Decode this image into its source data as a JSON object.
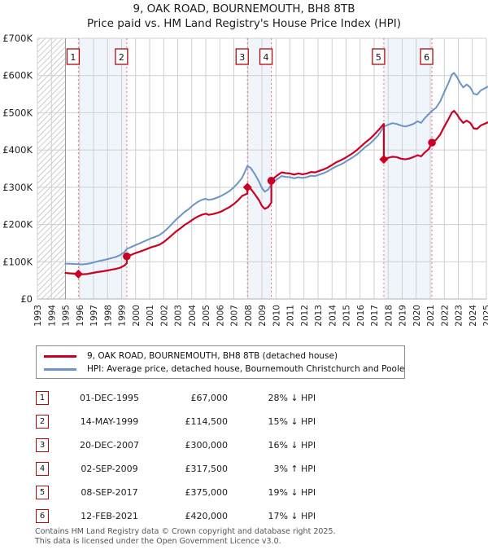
{
  "title": {
    "line1": "9, OAK ROAD, BOURNEMOUTH, BH8 8TB",
    "line2": "Price paid vs. HM Land Registry's House Price Index (HPI)"
  },
  "legend": {
    "entries": [
      {
        "label": "9, OAK ROAD, BOURNEMOUTH, BH8 8TB (detached house)",
        "color": "#cc0022"
      },
      {
        "label": "HPI: Average price, detached house, Bournemouth Christchurch and Poole",
        "color": "#6b95c9"
      }
    ]
  },
  "sales": [
    {
      "num": "1",
      "date": "01-DEC-1995",
      "price": "£67,000",
      "pct": "28%",
      "arrow": "↓",
      "hpi": "HPI"
    },
    {
      "num": "2",
      "date": "14-MAY-1999",
      "price": "£114,500",
      "pct": "15%",
      "arrow": "↓",
      "hpi": "HPI"
    },
    {
      "num": "3",
      "date": "20-DEC-2007",
      "price": "£300,000",
      "pct": "16%",
      "arrow": "↓",
      "hpi": "HPI"
    },
    {
      "num": "4",
      "date": "02-SEP-2009",
      "price": "£317,500",
      "pct": "3%",
      "arrow": "↑",
      "hpi": "HPI"
    },
    {
      "num": "5",
      "date": "08-SEP-2017",
      "price": "£375,000",
      "pct": "19%",
      "arrow": "↓",
      "hpi": "HPI"
    },
    {
      "num": "6",
      "date": "12-FEB-2021",
      "price": "£420,000",
      "pct": "17%",
      "arrow": "↓",
      "hpi": "HPI"
    }
  ],
  "footer": {
    "line1": "Contains HM Land Registry data © Crown copyright and database right 2025.",
    "line2": "This data is licensed under the Open Government Licence v3.0."
  },
  "chart_data": {
    "type": "line",
    "title": "Price paid vs. HM Land Registry's House Price Index (HPI)",
    "xlabel": "",
    "ylabel": "",
    "x_axis": {
      "labels": [
        "1993",
        "1994",
        "1995",
        "1996",
        "1997",
        "1998",
        "1999",
        "2000",
        "2001",
        "2002",
        "2003",
        "2004",
        "2005",
        "2006",
        "2007",
        "2008",
        "2009",
        "2010",
        "2011",
        "2012",
        "2013",
        "2014",
        "2015",
        "2016",
        "2017",
        "2018",
        "2019",
        "2020",
        "2021",
        "2022",
        "2023",
        "2024",
        "2025"
      ],
      "range": [
        1993,
        2025.3
      ]
    },
    "y_axis": {
      "labels": [
        "£0",
        "£100K",
        "£200K",
        "£300K",
        "£400K",
        "£500K",
        "£600K",
        "£700K"
      ],
      "range_gbp": [
        0,
        700000
      ],
      "gridline_step_gbp": 100000
    },
    "grid": true,
    "legend_position": "below",
    "hatched_no_data_region": {
      "from": 1993,
      "to": 1995
    },
    "ownership_bands": [
      {
        "from": 1995.92,
        "to": 1999.37
      },
      {
        "from": 2007.97,
        "to": 2009.67
      },
      {
        "from": 2017.69,
        "to": 2021.12
      }
    ],
    "markers": [
      {
        "num": "1",
        "year": 1995.92,
        "value_k": 67,
        "shape": "diamond"
      },
      {
        "num": "2",
        "year": 1999.37,
        "value_k": 114.5,
        "shape": "circle"
      },
      {
        "num": "3",
        "year": 2007.97,
        "value_k": 300,
        "shape": "diamond"
      },
      {
        "num": "4",
        "year": 2009.67,
        "value_k": 317.5,
        "shape": "circle"
      },
      {
        "num": "5",
        "year": 2017.69,
        "value_k": 375,
        "shape": "diamond"
      },
      {
        "num": "6",
        "year": 2021.12,
        "value_k": 420,
        "shape": "circle"
      }
    ],
    "series": [
      {
        "name": "9, OAK ROAD, BOURNEMOUTH, BH8 8TB (detached house)",
        "color": "#cc0022",
        "unit": "GBP_thousands",
        "points": [
          [
            1995,
            70
          ],
          [
            1995.3,
            69
          ],
          [
            1995.6,
            68
          ],
          [
            1995.92,
            67
          ],
          [
            1996.2,
            66.5
          ],
          [
            1996.5,
            67
          ],
          [
            1996.8,
            69
          ],
          [
            1997.1,
            71
          ],
          [
            1997.4,
            73
          ],
          [
            1997.7,
            74.5
          ],
          [
            1998,
            76.5
          ],
          [
            1998.3,
            79
          ],
          [
            1998.6,
            81
          ],
          [
            1998.9,
            84
          ],
          [
            1999.2,
            90
          ],
          [
            1999.37,
            96
          ],
          [
            1999.37,
            114.5
          ],
          [
            1999.6,
            117
          ],
          [
            1999.9,
            122
          ],
          [
            2000.2,
            126
          ],
          [
            2000.5,
            130
          ],
          [
            2000.8,
            134
          ],
          [
            2001.1,
            139
          ],
          [
            2001.4,
            142
          ],
          [
            2001.7,
            146
          ],
          [
            2002,
            153
          ],
          [
            2002.3,
            162
          ],
          [
            2002.6,
            172
          ],
          [
            2002.9,
            182
          ],
          [
            2003.2,
            190
          ],
          [
            2003.5,
            199
          ],
          [
            2003.8,
            206
          ],
          [
            2004.1,
            214
          ],
          [
            2004.4,
            221
          ],
          [
            2004.7,
            226
          ],
          [
            2005,
            229
          ],
          [
            2005.2,
            226
          ],
          [
            2005.5,
            228
          ],
          [
            2005.8,
            231
          ],
          [
            2006.1,
            235
          ],
          [
            2006.4,
            241
          ],
          [
            2006.7,
            247
          ],
          [
            2007,
            255
          ],
          [
            2007.3,
            265
          ],
          [
            2007.6,
            277
          ],
          [
            2007.97,
            283
          ],
          [
            2007.97,
            300
          ],
          [
            2008.2,
            296
          ],
          [
            2008.5,
            281
          ],
          [
            2008.8,
            265
          ],
          [
            2009,
            250
          ],
          [
            2009.2,
            242
          ],
          [
            2009.45,
            247
          ],
          [
            2009.67,
            259
          ],
          [
            2009.67,
            317.5
          ],
          [
            2009.9,
            326
          ],
          [
            2010.1,
            332
          ],
          [
            2010.4,
            340
          ],
          [
            2010.7,
            338
          ],
          [
            2011,
            337
          ],
          [
            2011.3,
            334
          ],
          [
            2011.6,
            337
          ],
          [
            2011.9,
            335
          ],
          [
            2012.2,
            337
          ],
          [
            2012.5,
            341
          ],
          [
            2012.8,
            340
          ],
          [
            2013.1,
            344
          ],
          [
            2013.4,
            348
          ],
          [
            2013.7,
            353
          ],
          [
            2014,
            360
          ],
          [
            2014.3,
            367
          ],
          [
            2014.6,
            372
          ],
          [
            2014.9,
            378
          ],
          [
            2015.2,
            385
          ],
          [
            2015.5,
            392
          ],
          [
            2015.8,
            401
          ],
          [
            2016.1,
            411
          ],
          [
            2016.4,
            421
          ],
          [
            2016.7,
            430
          ],
          [
            2017,
            441
          ],
          [
            2017.3,
            453
          ],
          [
            2017.69,
            470
          ],
          [
            2017.69,
            375
          ],
          [
            2018,
            379
          ],
          [
            2018.3,
            382
          ],
          [
            2018.6,
            381
          ],
          [
            2018.9,
            377
          ],
          [
            2019.2,
            375
          ],
          [
            2019.5,
            377
          ],
          [
            2019.8,
            381
          ],
          [
            2020.1,
            386
          ],
          [
            2020.35,
            383
          ],
          [
            2020.6,
            393
          ],
          [
            2020.9,
            403
          ],
          [
            2021.12,
            420
          ],
          [
            2021.4,
            427
          ],
          [
            2021.7,
            441
          ],
          [
            2022,
            463
          ],
          [
            2022.3,
            483
          ],
          [
            2022.55,
            501
          ],
          [
            2022.7,
            505
          ],
          [
            2022.9,
            496
          ],
          [
            2023.1,
            484
          ],
          [
            2023.35,
            473
          ],
          [
            2023.6,
            479
          ],
          [
            2023.85,
            473
          ],
          [
            2024.1,
            458
          ],
          [
            2024.35,
            457
          ],
          [
            2024.6,
            466
          ],
          [
            2024.85,
            470
          ],
          [
            2025.1,
            474
          ]
        ]
      },
      {
        "name": "HPI: Average price, detached house, Bournemouth Christchurch and Poole",
        "color": "#6b95c9",
        "unit": "GBP_thousands",
        "points": [
          [
            1995,
            95
          ],
          [
            1995.3,
            94.5
          ],
          [
            1995.6,
            94
          ],
          [
            1995.92,
            93.5
          ],
          [
            1996.2,
            93
          ],
          [
            1996.5,
            94
          ],
          [
            1996.8,
            96
          ],
          [
            1997.1,
            99
          ],
          [
            1997.4,
            102
          ],
          [
            1997.7,
            104.5
          ],
          [
            1998,
            107
          ],
          [
            1998.3,
            110
          ],
          [
            1998.6,
            113
          ],
          [
            1998.9,
            118
          ],
          [
            1999.2,
            126
          ],
          [
            1999.37,
            134.5
          ],
          [
            1999.6,
            138
          ],
          [
            1999.9,
            143
          ],
          [
            2000.2,
            148
          ],
          [
            2000.5,
            153
          ],
          [
            2000.8,
            158
          ],
          [
            2001.1,
            163
          ],
          [
            2001.4,
            167
          ],
          [
            2001.7,
            172
          ],
          [
            2002,
            180
          ],
          [
            2002.3,
            190
          ],
          [
            2002.6,
            202
          ],
          [
            2002.9,
            214
          ],
          [
            2003.2,
            224
          ],
          [
            2003.5,
            234
          ],
          [
            2003.8,
            242
          ],
          [
            2004.1,
            252
          ],
          [
            2004.4,
            260
          ],
          [
            2004.7,
            266
          ],
          [
            2005,
            269
          ],
          [
            2005.2,
            266
          ],
          [
            2005.5,
            268
          ],
          [
            2005.8,
            272
          ],
          [
            2006.1,
            277
          ],
          [
            2006.4,
            283
          ],
          [
            2006.7,
            290
          ],
          [
            2007,
            300
          ],
          [
            2007.3,
            312
          ],
          [
            2007.6,
            326
          ],
          [
            2007.97,
            357
          ],
          [
            2008.2,
            352
          ],
          [
            2008.5,
            335
          ],
          [
            2008.8,
            315
          ],
          [
            2009,
            298
          ],
          [
            2009.2,
            288
          ],
          [
            2009.45,
            294
          ],
          [
            2009.67,
            308
          ],
          [
            2009.9,
            316
          ],
          [
            2010.1,
            322
          ],
          [
            2010.4,
            330
          ],
          [
            2010.7,
            328
          ],
          [
            2011,
            327
          ],
          [
            2011.3,
            324
          ],
          [
            2011.6,
            327
          ],
          [
            2011.9,
            325
          ],
          [
            2012.2,
            327
          ],
          [
            2012.5,
            331
          ],
          [
            2012.8,
            330
          ],
          [
            2013.1,
            334
          ],
          [
            2013.4,
            338
          ],
          [
            2013.7,
            343
          ],
          [
            2014,
            350
          ],
          [
            2014.3,
            356
          ],
          [
            2014.6,
            361
          ],
          [
            2014.9,
            367
          ],
          [
            2015.2,
            374
          ],
          [
            2015.5,
            381
          ],
          [
            2015.8,
            389
          ],
          [
            2016.1,
            399
          ],
          [
            2016.4,
            409
          ],
          [
            2016.7,
            417
          ],
          [
            2017,
            428
          ],
          [
            2017.3,
            440
          ],
          [
            2017.69,
            463
          ],
          [
            2018,
            468
          ],
          [
            2018.3,
            472
          ],
          [
            2018.6,
            470
          ],
          [
            2018.9,
            466
          ],
          [
            2019.2,
            463
          ],
          [
            2019.5,
            466
          ],
          [
            2019.8,
            470
          ],
          [
            2020.1,
            477
          ],
          [
            2020.35,
            473
          ],
          [
            2020.6,
            485
          ],
          [
            2020.9,
            497
          ],
          [
            2021.12,
            505
          ],
          [
            2021.4,
            513
          ],
          [
            2021.7,
            530
          ],
          [
            2022,
            556
          ],
          [
            2022.3,
            580
          ],
          [
            2022.55,
            603
          ],
          [
            2022.7,
            607
          ],
          [
            2022.9,
            596
          ],
          [
            2023.1,
            582
          ],
          [
            2023.35,
            568
          ],
          [
            2023.6,
            576
          ],
          [
            2023.85,
            568
          ],
          [
            2024.1,
            551
          ],
          [
            2024.35,
            549
          ],
          [
            2024.6,
            560
          ],
          [
            2024.85,
            565
          ],
          [
            2025.1,
            570
          ]
        ]
      }
    ],
    "colors": {
      "grid": "#cfcfcf",
      "axis": "#b0b0b0",
      "band_fill": "#f0f4fb",
      "sale_line": "#ef7070",
      "marker_box_border": "#b00b0b",
      "hatch": "#c4c4c4"
    }
  }
}
